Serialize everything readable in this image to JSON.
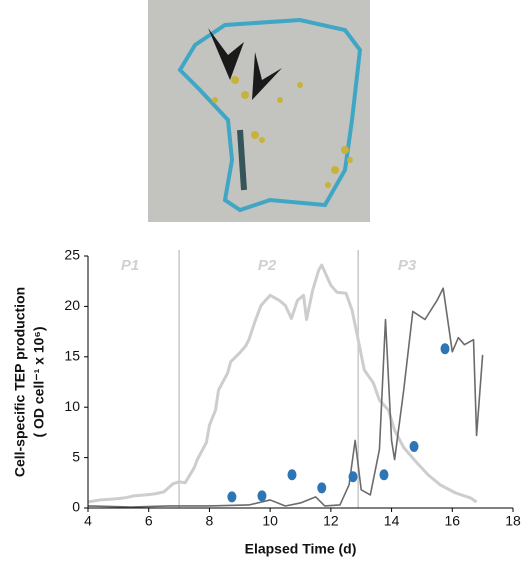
{
  "chart_data": {
    "type": "line",
    "xlabel": "Elapsed Time (d)",
    "ylabel": [
      "Cell-specific TEP  production",
      "( OD cell⁻¹ x 10⁶)"
    ],
    "xlim": [
      4,
      18
    ],
    "xticks": [
      4,
      6,
      8,
      10,
      12,
      14,
      16,
      18
    ],
    "ylim": [
      0,
      25
    ],
    "yticks": [
      0,
      5,
      10,
      15,
      20,
      25
    ],
    "vlines": [
      7,
      12.9
    ],
    "annotations": [
      "P1",
      "P2",
      "P3"
    ],
    "series": [
      {
        "type": "line",
        "color": "#cdcdcd",
        "x": [
          4,
          4.4,
          4.9,
          5.2,
          5.5,
          5.9,
          6.2,
          6.5,
          6.8,
          7.0,
          7.2,
          7.5,
          7.6,
          7.9,
          8.0,
          8.2,
          8.3,
          8.6,
          8.7,
          9.0,
          9.2,
          9.3,
          9.5,
          9.7,
          10.0,
          10.3,
          10.5,
          10.7,
          10.9,
          11.1,
          11.2,
          11.4,
          11.6,
          11.7,
          12.0,
          12.2,
          12.5,
          12.7,
          12.9,
          13.1,
          13.4,
          13.6,
          13.9,
          14.1,
          14.4,
          14.8,
          15.2,
          15.6,
          16.1,
          16.6,
          16.8
        ],
        "values": [
          0.6,
          0.8,
          0.9,
          1.0,
          1.2,
          1.3,
          1.4,
          1.6,
          2.4,
          2.6,
          2.5,
          4.0,
          4.8,
          6.5,
          8.2,
          9.7,
          11.7,
          13.4,
          14.5,
          15.4,
          16.1,
          16.7,
          18.5,
          20.1,
          21.1,
          20.6,
          20.1,
          18.8,
          20.6,
          21.1,
          18.7,
          21.6,
          23.6,
          24.1,
          22.1,
          21.4,
          21.3,
          19.6,
          16.7,
          13.7,
          12.4,
          10.7,
          9.7,
          7.7,
          6.0,
          4.6,
          3.3,
          2.3,
          1.5,
          1.0,
          0.6
        ]
      },
      {
        "type": "line",
        "color": "#6b6b6b",
        "x": [
          4,
          5.4,
          6.7,
          8.0,
          9.3,
          10.0,
          10.5,
          11.0,
          11.5,
          11.8,
          12.3,
          12.6,
          12.8,
          13.0,
          13.3,
          13.6,
          13.8,
          14.0,
          14.1,
          14.4,
          14.7,
          15.1,
          15.5,
          15.7,
          16.0,
          16.2,
          16.4,
          16.7,
          16.8,
          17.0
        ],
        "values": [
          0.2,
          0.1,
          0.2,
          0.2,
          0.3,
          0.8,
          0.2,
          0.5,
          1.1,
          0.2,
          0.3,
          2.3,
          6.7,
          1.8,
          1.3,
          5.8,
          18.7,
          6.7,
          4.8,
          11.7,
          19.5,
          18.7,
          20.6,
          21.8,
          15.5,
          16.9,
          16.2,
          16.7,
          7.2,
          15.2
        ]
      },
      {
        "type": "scatter",
        "color": "#2e75b6",
        "x": [
          8.74,
          9.73,
          10.72,
          11.7,
          12.73,
          13.75,
          14.74,
          15.76
        ],
        "values": [
          1.1,
          1.2,
          3.3,
          2.0,
          3.1,
          3.3,
          6.1,
          15.8
        ]
      }
    ]
  }
}
